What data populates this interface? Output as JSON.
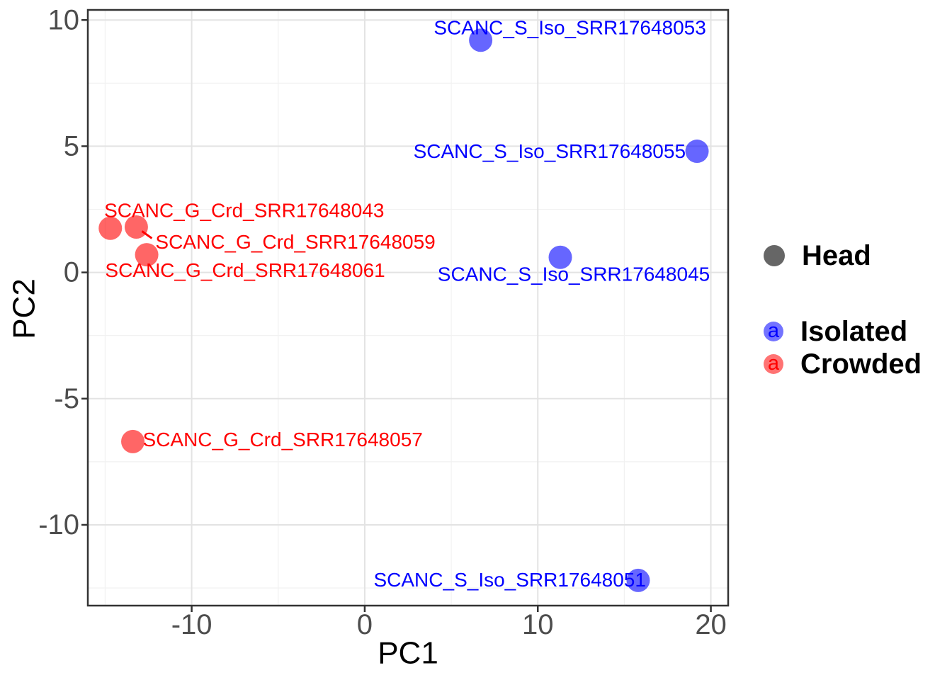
{
  "chart_data": {
    "type": "scatter",
    "title": "",
    "xlabel": "PC1",
    "ylabel": "PC2",
    "xlim": [
      -16.0,
      21.0
    ],
    "ylim": [
      -13.2,
      10.4
    ],
    "x_ticks": [
      -10,
      0,
      10,
      20
    ],
    "y_ticks": [
      -10,
      -5,
      0,
      5,
      10
    ],
    "x_minor_ticks": [
      -15,
      -5,
      5,
      15
    ],
    "y_minor_ticks": [
      -12.5,
      -7.5,
      -2.5,
      2.5,
      7.5
    ],
    "grid": true,
    "legend_position": "right",
    "series": [
      {
        "name": "Isolated",
        "color": "#0000FF",
        "point_alpha": 0.6,
        "points": [
          {
            "label": "SCANC_S_Iso_SRR17648053",
            "x": 6.7,
            "y": 9.2,
            "anchor": "middle",
            "dx": 126,
            "dy": -18,
            "connector": false
          },
          {
            "label": "SCANC_S_Iso_SRR17648055",
            "x": 19.2,
            "y": 4.8,
            "anchor": "end",
            "dx": -16,
            "dy": 0,
            "connector": false
          },
          {
            "label": "SCANC_S_Iso_SRR17648045",
            "x": 11.3,
            "y": 0.6,
            "anchor": "middle",
            "dx": 19,
            "dy": 24,
            "connector": false
          },
          {
            "label": "SCANC_S_Iso_SRR17648051",
            "x": 15.8,
            "y": -12.2,
            "anchor": "end",
            "dx": 11,
            "dy": -1,
            "connector": false
          }
        ]
      },
      {
        "name": "Crowded",
        "color": "#FF0000",
        "point_alpha": 0.6,
        "points": [
          {
            "label": "SCANC_G_Crd_SRR17648043",
            "x": -14.7,
            "y": 1.75,
            "anchor": "middle",
            "dx": 189,
            "dy": -25,
            "connector": false
          },
          {
            "label": "SCANC_G_Crd_SRR17648059",
            "x": -13.2,
            "y": 1.8,
            "anchor": "start",
            "dx": 27,
            "dy": 21,
            "connector": true
          },
          {
            "label": "SCANC_G_Crd_SRR17648061",
            "x": -12.6,
            "y": 0.7,
            "anchor": "middle",
            "dx": 139,
            "dy": 22,
            "connector": false
          },
          {
            "label": "SCANC_G_Crd_SRR17648057",
            "x": -13.4,
            "y": -6.7,
            "anchor": "start",
            "dx": 14,
            "dy": -3,
            "connector": false
          }
        ]
      }
    ],
    "legend": {
      "entries": [
        {
          "label": "Head",
          "key_type": "dot",
          "key_color": "#666666",
          "glyph": ""
        },
        {
          "label": "Isolated",
          "key_type": "text",
          "key_color": "#0000FF",
          "glyph": "a"
        },
        {
          "label": "Crowded",
          "key_type": "text",
          "key_color": "#FF0000",
          "glyph": "a"
        }
      ]
    },
    "style": {
      "panel_border": "#333333",
      "grid_major": "#E3E3E3",
      "grid_minor": "#F1F1F1",
      "tick_color": "#333333",
      "tick_text_color": "#4D4D4D",
      "axis_title_color": "#000000",
      "background": "#FFFFFF"
    }
  }
}
